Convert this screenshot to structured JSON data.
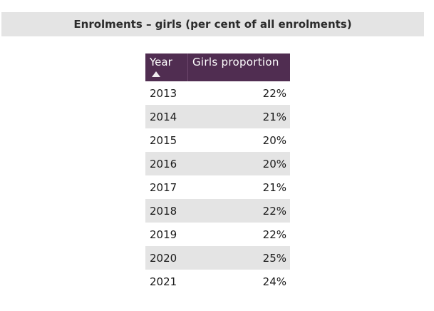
{
  "banner": {
    "title": "Enrolments – girls (per cent of all enrolments)"
  },
  "table": {
    "columns": [
      {
        "label": "Year",
        "sorted": "ascending"
      },
      {
        "label": "Girls proportion"
      }
    ],
    "rows": [
      {
        "year": "2013",
        "value": "22%"
      },
      {
        "year": "2014",
        "value": "21%"
      },
      {
        "year": "2015",
        "value": "20%"
      },
      {
        "year": "2016",
        "value": "20%"
      },
      {
        "year": "2017",
        "value": "21%"
      },
      {
        "year": "2018",
        "value": "22%"
      },
      {
        "year": "2019",
        "value": "22%"
      },
      {
        "year": "2020",
        "value": "25%"
      },
      {
        "year": "2021",
        "value": "24%"
      }
    ]
  },
  "icons": {
    "sort_ascending": "triangle-up"
  },
  "colors": {
    "banner_bg": "#e4e4e4",
    "header_bg": "#502d51",
    "header_divider": "#6d486d",
    "header_text": "#ffffff",
    "stripe_bg": "#e4e4e4",
    "row_bg": "#ffffff",
    "body_text": "#1a1a1a",
    "title_text": "#2b2b2b",
    "sort_arrow": "#f0ecf0"
  },
  "chart_data": {
    "type": "table",
    "title": "Enrolments – girls (per cent of all enrolments)",
    "columns": [
      "Year",
      "Girls proportion"
    ],
    "x": [
      2013,
      2014,
      2015,
      2016,
      2017,
      2018,
      2019,
      2020,
      2021
    ],
    "values_percent": [
      22,
      21,
      20,
      20,
      21,
      22,
      22,
      25,
      24
    ],
    "unit": "%",
    "sort": {
      "column": "Year",
      "direction": "ascending"
    },
    "layout": {
      "zebra_striping": true,
      "first_row_bg": "white"
    }
  }
}
